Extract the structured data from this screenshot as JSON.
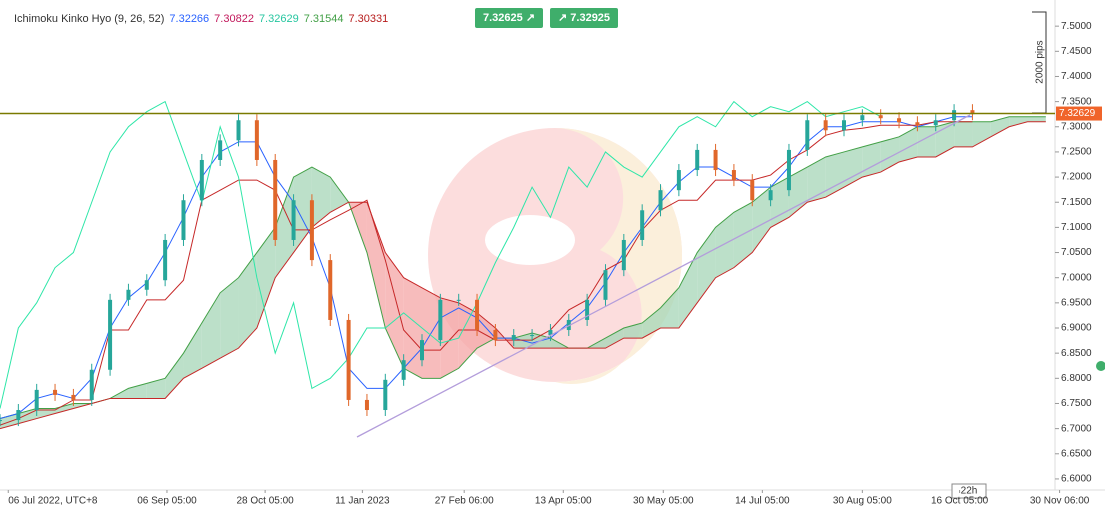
{
  "header": {
    "indicator": "Ichimoku Kinko Hyo (9, 26, 52)",
    "values": [
      {
        "text": "7.32266",
        "color": "#2962ff"
      },
      {
        "text": "7.30822",
        "color": "#c2185b"
      },
      {
        "text": "7.32629",
        "color": "#26c6a0"
      },
      {
        "text": "7.31544",
        "color": "#43a047"
      },
      {
        "text": "7.30331",
        "color": "#b71c1c"
      }
    ]
  },
  "trade_buttons": {
    "sell": "7.32625",
    "buy": "7.32925"
  },
  "measure_label": "2000 pips",
  "countdown": "22h",
  "chart_data": {
    "type": "line",
    "xlim": [
      0,
      115
    ],
    "ylim": [
      6.578,
      7.552
    ],
    "xticks": [
      {
        "value": 0.9,
        "label": "06 Jul 2022, UTC+8"
      },
      {
        "value": 18.2,
        "label": "06 Sep 05:00"
      },
      {
        "value": 28.9,
        "label": "28 Oct 05:00"
      },
      {
        "value": 39.5,
        "label": "11 Jan 2023"
      },
      {
        "value": 50.6,
        "label": "27 Feb 06:00"
      },
      {
        "value": 61.4,
        "label": "13 Apr 05:00"
      },
      {
        "value": 72.3,
        "label": "30 May 05:00"
      },
      {
        "value": 83.1,
        "label": "14 Jul 05:00"
      },
      {
        "value": 94.0,
        "label": "30 Aug 05:00"
      },
      {
        "value": 104.6,
        "label": "16 Oct 05:00"
      },
      {
        "value": 115.5,
        "label": "30 Nov 06:00"
      }
    ],
    "yticks": [
      {
        "value": 7.5,
        "label": "7.5000"
      },
      {
        "value": 7.45,
        "label": "7.4500"
      },
      {
        "value": 7.4,
        "label": "7.4000"
      },
      {
        "value": 7.35,
        "label": "7.3500"
      },
      {
        "value": 7.3,
        "label": "7.3000"
      },
      {
        "value": 7.25,
        "label": "7.2500"
      },
      {
        "value": 7.2,
        "label": "7.2000"
      },
      {
        "value": 7.15,
        "label": "7.1500"
      },
      {
        "value": 7.1,
        "label": "7.1000"
      },
      {
        "value": 7.05,
        "label": "7.0500"
      },
      {
        "value": 7.0,
        "label": "7.0000"
      },
      {
        "value": 6.95,
        "label": "6.9500"
      },
      {
        "value": 6.9,
        "label": "6.9000"
      },
      {
        "value": 6.85,
        "label": "6.8500"
      },
      {
        "value": 6.8,
        "label": "6.8000"
      },
      {
        "value": 6.75,
        "label": "6.7500"
      },
      {
        "value": 6.7,
        "label": "6.7000"
      },
      {
        "value": 6.65,
        "label": "6.6500"
      },
      {
        "value": 6.6,
        "label": "6.6000"
      }
    ],
    "price_line": {
      "value": 7.32629,
      "color": "#7a7a00",
      "tag_color": "#f0642a"
    },
    "x": [
      0,
      2,
      4,
      6,
      8,
      10,
      12,
      14,
      16,
      18,
      20,
      22,
      24,
      26,
      28,
      30,
      32,
      34,
      36,
      38,
      40,
      42,
      44,
      46,
      48,
      50,
      52,
      54,
      56,
      58,
      60,
      62,
      64,
      66,
      68,
      70,
      72,
      74,
      76,
      78,
      80,
      82,
      84,
      86,
      88,
      90,
      92,
      94,
      96,
      98,
      100,
      102,
      104,
      106
    ],
    "series": [
      {
        "color": "#26a69a",
        "values": [
          6.717,
          6.737,
          6.777,
          6.767,
          6.757,
          6.817,
          6.956,
          6.976,
          6.995,
          7.075,
          7.154,
          7.234,
          7.273,
          7.313,
          7.234,
          7.075,
          7.154,
          7.035,
          6.916,
          6.757,
          6.737,
          6.797,
          6.836,
          6.876,
          6.956,
          6.956,
          6.896,
          6.876,
          6.886,
          6.886,
          6.896,
          6.916,
          6.956,
          7.015,
          7.075,
          7.134,
          7.174,
          7.214,
          7.254,
          7.214,
          7.194,
          7.154,
          7.174,
          7.254,
          7.313,
          7.293,
          7.313,
          7.323,
          7.317,
          7.309,
          7.303,
          7.313,
          7.333,
          7.325
        ]
      },
      {
        "color": "#2962ff",
        "values": [
          6.72,
          6.73,
          6.76,
          6.77,
          6.76,
          6.8,
          6.9,
          6.96,
          6.99,
          7.05,
          7.12,
          7.2,
          7.25,
          7.27,
          7.27,
          7.2,
          7.15,
          7.08,
          6.98,
          6.82,
          6.78,
          6.78,
          6.82,
          6.86,
          6.92,
          6.94,
          6.92,
          6.88,
          6.88,
          6.87,
          6.88,
          6.91,
          6.94,
          6.99,
          7.05,
          7.1,
          7.15,
          7.19,
          7.22,
          7.22,
          7.2,
          7.18,
          7.18,
          7.22,
          7.27,
          7.3,
          7.3,
          7.31,
          7.31,
          7.31,
          7.3,
          7.31,
          7.32,
          7.32
        ]
      },
      {
        "color": "#c62828",
        "values": [
          6.707,
          6.72,
          6.737,
          6.737,
          6.757,
          6.757,
          6.896,
          6.896,
          6.956,
          6.956,
          6.995,
          7.154,
          7.174,
          7.194,
          7.194,
          7.174,
          7.095,
          7.095,
          7.115,
          7.134,
          7.154,
          7.035,
          6.896,
          6.856,
          6.856,
          6.896,
          6.896,
          6.876,
          6.876,
          6.876,
          6.896,
          6.936,
          6.956,
          7.015,
          7.035,
          7.095,
          7.134,
          7.154,
          7.154,
          7.194,
          7.194,
          7.194,
          7.204,
          7.234,
          7.254,
          7.283,
          7.293,
          7.297,
          7.303,
          7.303,
          7.303,
          7.31,
          7.31,
          7.31
        ]
      },
      {
        "color": "#2ee6a8",
        "values": [
          6.74,
          6.9,
          6.95,
          7.02,
          7.05,
          7.15,
          7.25,
          7.3,
          7.33,
          7.35,
          7.25,
          7.15,
          7.3,
          7.2,
          7.0,
          6.85,
          6.95,
          6.78,
          6.8,
          6.84,
          6.9,
          6.9,
          6.93,
          6.9,
          6.87,
          6.88,
          6.95,
          7.03,
          7.1,
          7.18,
          7.12,
          7.22,
          7.18,
          7.25,
          7.22,
          7.2,
          7.25,
          7.3,
          7.32,
          7.3,
          7.35,
          7.32,
          7.34,
          7.33,
          7.35,
          7.32,
          7.33,
          7.34,
          7.32,
          null,
          null,
          null,
          null,
          null
        ]
      }
    ],
    "cloud": {
      "x": [
        0,
        2,
        4,
        6,
        8,
        10,
        12,
        14,
        16,
        18,
        20,
        22,
        24,
        26,
        28,
        30,
        32,
        34,
        36,
        38,
        40,
        42,
        44,
        46,
        48,
        50,
        52,
        54,
        56,
        58,
        60,
        62,
        64,
        66,
        68,
        70,
        72,
        74,
        76,
        78,
        80,
        82,
        84,
        86,
        88,
        90,
        92,
        94,
        96,
        98,
        100,
        102,
        104,
        106,
        108,
        110,
        112,
        114
      ],
      "span_a": {
        "color": "#43a047",
        "values": [
          6.72,
          6.73,
          6.74,
          6.74,
          6.75,
          6.75,
          6.76,
          6.78,
          6.79,
          6.8,
          6.85,
          6.91,
          6.97,
          7.0,
          7.05,
          7.1,
          7.2,
          7.22,
          7.2,
          7.15,
          7.05,
          6.9,
          6.82,
          6.8,
          6.8,
          6.82,
          6.86,
          6.88,
          6.88,
          6.89,
          6.88,
          6.86,
          6.86,
          6.88,
          6.9,
          6.91,
          6.94,
          6.98,
          7.05,
          7.1,
          7.13,
          7.15,
          7.18,
          7.2,
          7.22,
          7.24,
          7.25,
          7.26,
          7.27,
          7.28,
          7.3,
          7.3,
          7.31,
          7.31,
          7.31,
          7.32,
          7.32,
          7.32
        ]
      },
      "span_b": {
        "color": "#c62828",
        "values": [
          6.7,
          6.71,
          6.72,
          6.73,
          6.74,
          6.75,
          6.76,
          6.76,
          6.76,
          6.76,
          6.8,
          6.82,
          6.84,
          6.86,
          6.9,
          7.0,
          7.05,
          7.1,
          7.13,
          7.15,
          7.15,
          7.05,
          7.0,
          6.98,
          6.96,
          6.95,
          6.93,
          6.9,
          6.86,
          6.86,
          6.86,
          6.86,
          6.86,
          6.86,
          6.88,
          6.88,
          6.9,
          6.9,
          6.95,
          7.0,
          7.02,
          7.05,
          7.1,
          7.12,
          7.15,
          7.16,
          7.18,
          7.2,
          7.21,
          7.23,
          7.24,
          7.24,
          7.26,
          7.26,
          7.28,
          7.3,
          7.31,
          7.31
        ]
      },
      "up_fill": "#a5d6b7",
      "down_fill": "#f4a6a6"
    }
  }
}
